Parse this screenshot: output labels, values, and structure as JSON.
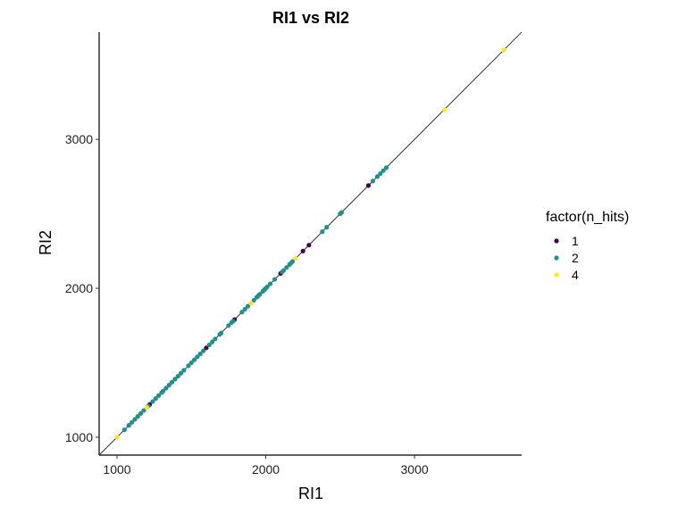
{
  "chart_data": {
    "type": "scatter",
    "title": "RI1 vs RI2",
    "xlabel": "RI1",
    "ylabel": "RI2",
    "xlim": [
      880,
      3720
    ],
    "ylim": [
      880,
      3720
    ],
    "xticks": [
      1000,
      2000,
      3000
    ],
    "yticks": [
      1000,
      2000,
      3000
    ],
    "grid": false,
    "reference_line": "y = x",
    "legend": {
      "title": "factor(n_hits)",
      "position": "right"
    },
    "series": [
      {
        "name": "1",
        "color": "#440154",
        "points": [
          {
            "x": 1220,
            "y": 1220
          },
          {
            "x": 1600,
            "y": 1600
          },
          {
            "x": 1790,
            "y": 1790
          },
          {
            "x": 2100,
            "y": 2100
          },
          {
            "x": 2250,
            "y": 2250
          },
          {
            "x": 2290,
            "y": 2290
          },
          {
            "x": 2690,
            "y": 2690
          }
        ]
      },
      {
        "name": "2",
        "color": "#21908C",
        "points": [
          {
            "x": 1050,
            "y": 1050
          },
          {
            "x": 1080,
            "y": 1080
          },
          {
            "x": 1100,
            "y": 1100
          },
          {
            "x": 1120,
            "y": 1120
          },
          {
            "x": 1140,
            "y": 1140
          },
          {
            "x": 1160,
            "y": 1160
          },
          {
            "x": 1180,
            "y": 1180
          },
          {
            "x": 1210,
            "y": 1210
          },
          {
            "x": 1240,
            "y": 1240
          },
          {
            "x": 1260,
            "y": 1260
          },
          {
            "x": 1280,
            "y": 1280
          },
          {
            "x": 1300,
            "y": 1300
          },
          {
            "x": 1310,
            "y": 1310
          },
          {
            "x": 1330,
            "y": 1330
          },
          {
            "x": 1350,
            "y": 1350
          },
          {
            "x": 1370,
            "y": 1370
          },
          {
            "x": 1390,
            "y": 1390
          },
          {
            "x": 1410,
            "y": 1410
          },
          {
            "x": 1430,
            "y": 1430
          },
          {
            "x": 1450,
            "y": 1450
          },
          {
            "x": 1480,
            "y": 1480
          },
          {
            "x": 1500,
            "y": 1500
          },
          {
            "x": 1520,
            "y": 1520
          },
          {
            "x": 1540,
            "y": 1540
          },
          {
            "x": 1560,
            "y": 1560
          },
          {
            "x": 1580,
            "y": 1580
          },
          {
            "x": 1620,
            "y": 1620
          },
          {
            "x": 1640,
            "y": 1640
          },
          {
            "x": 1660,
            "y": 1660
          },
          {
            "x": 1690,
            "y": 1690
          },
          {
            "x": 1700,
            "y": 1700
          },
          {
            "x": 1750,
            "y": 1750
          },
          {
            "x": 1770,
            "y": 1770
          },
          {
            "x": 1780,
            "y": 1780
          },
          {
            "x": 1840,
            "y": 1840
          },
          {
            "x": 1860,
            "y": 1860
          },
          {
            "x": 1880,
            "y": 1880
          },
          {
            "x": 1920,
            "y": 1920
          },
          {
            "x": 1940,
            "y": 1940
          },
          {
            "x": 1950,
            "y": 1950
          },
          {
            "x": 1960,
            "y": 1960
          },
          {
            "x": 1980,
            "y": 1980
          },
          {
            "x": 1990,
            "y": 1990
          },
          {
            "x": 2000,
            "y": 2000
          },
          {
            "x": 2010,
            "y": 2010
          },
          {
            "x": 2030,
            "y": 2030
          },
          {
            "x": 2060,
            "y": 2060
          },
          {
            "x": 2110,
            "y": 2110
          },
          {
            "x": 2120,
            "y": 2120
          },
          {
            "x": 2140,
            "y": 2140
          },
          {
            "x": 2160,
            "y": 2160
          },
          {
            "x": 2170,
            "y": 2170
          },
          {
            "x": 2180,
            "y": 2180
          },
          {
            "x": 2380,
            "y": 2380
          },
          {
            "x": 2410,
            "y": 2410
          },
          {
            "x": 2500,
            "y": 2500
          },
          {
            "x": 2510,
            "y": 2510
          },
          {
            "x": 2720,
            "y": 2720
          },
          {
            "x": 2750,
            "y": 2750
          },
          {
            "x": 2770,
            "y": 2770
          },
          {
            "x": 2790,
            "y": 2790
          },
          {
            "x": 2810,
            "y": 2810
          }
        ]
      },
      {
        "name": "4",
        "color": "#FDE725",
        "points": [
          {
            "x": 1000,
            "y": 1000
          },
          {
            "x": 1200,
            "y": 1200
          },
          {
            "x": 1900,
            "y": 1900
          },
          {
            "x": 2200,
            "y": 2200
          },
          {
            "x": 3200,
            "y": 3200
          },
          {
            "x": 3600,
            "y": 3600
          }
        ]
      }
    ]
  }
}
